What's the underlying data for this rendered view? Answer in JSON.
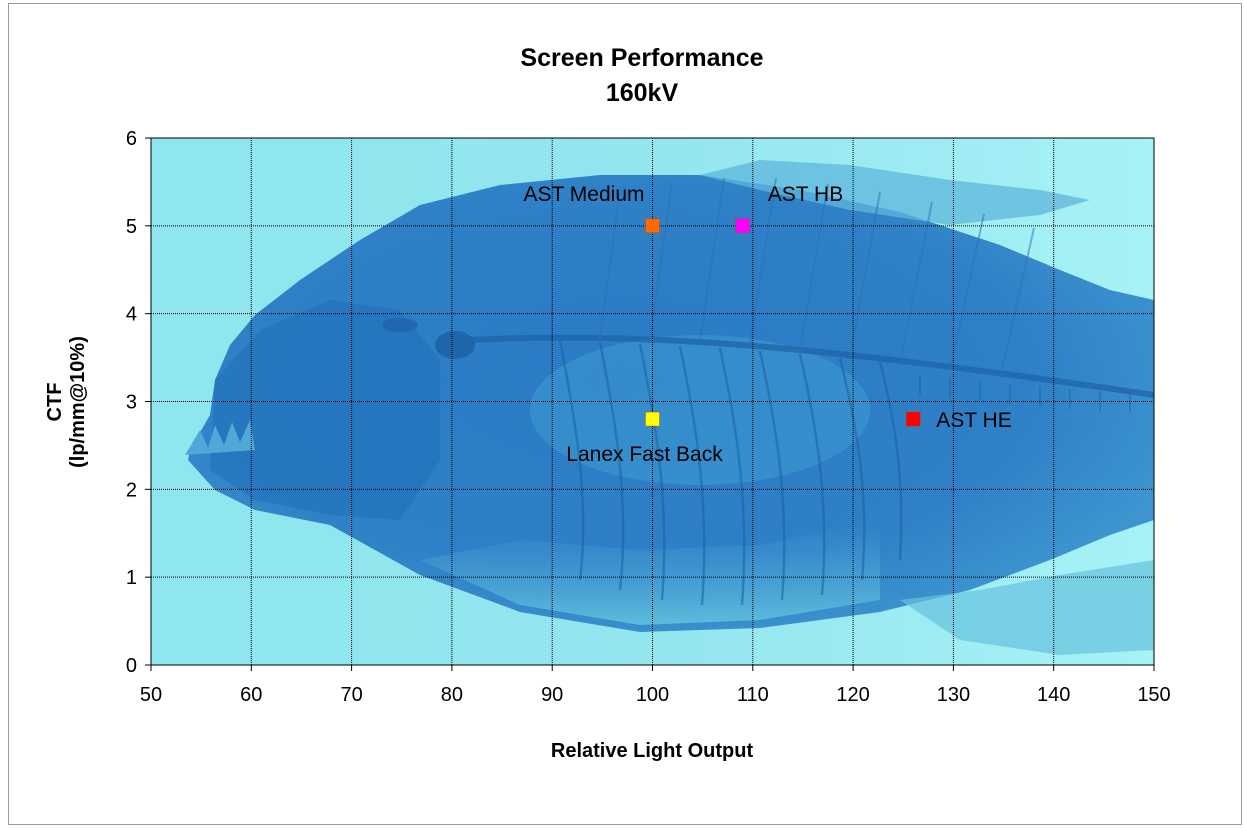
{
  "chart_data": {
    "type": "scatter",
    "title": "Screen Performance",
    "subtitle": "160kV",
    "xlabel": "Relative Light Output",
    "ylabel_line1": "CTF",
    "ylabel_line2": "(lp/mm@10%)",
    "xlim": [
      50,
      150
    ],
    "ylim": [
      0,
      6
    ],
    "x_ticks": [
      "50",
      "60",
      "70",
      "80",
      "90",
      "100",
      "110",
      "120",
      "130",
      "140",
      "150"
    ],
    "y_ticks": [
      "0",
      "1",
      "2",
      "3",
      "4",
      "5",
      "6"
    ],
    "grid": true,
    "background_image": "fish-xray-icon",
    "points": [
      {
        "label": "AST Medium",
        "x": 100,
        "y": 5.0,
        "color": "#ff6a00",
        "label_position": "upper-left"
      },
      {
        "label": "AST HB",
        "x": 109,
        "y": 5.0,
        "color": "#ff00ff",
        "label_position": "upper-right"
      },
      {
        "label": "Lanex Fast Back",
        "x": 100,
        "y": 2.8,
        "color": "#ffff00",
        "label_position": "below"
      },
      {
        "label": "AST HE",
        "x": 126,
        "y": 2.8,
        "color": "#ff0000",
        "label_position": "right"
      }
    ]
  }
}
